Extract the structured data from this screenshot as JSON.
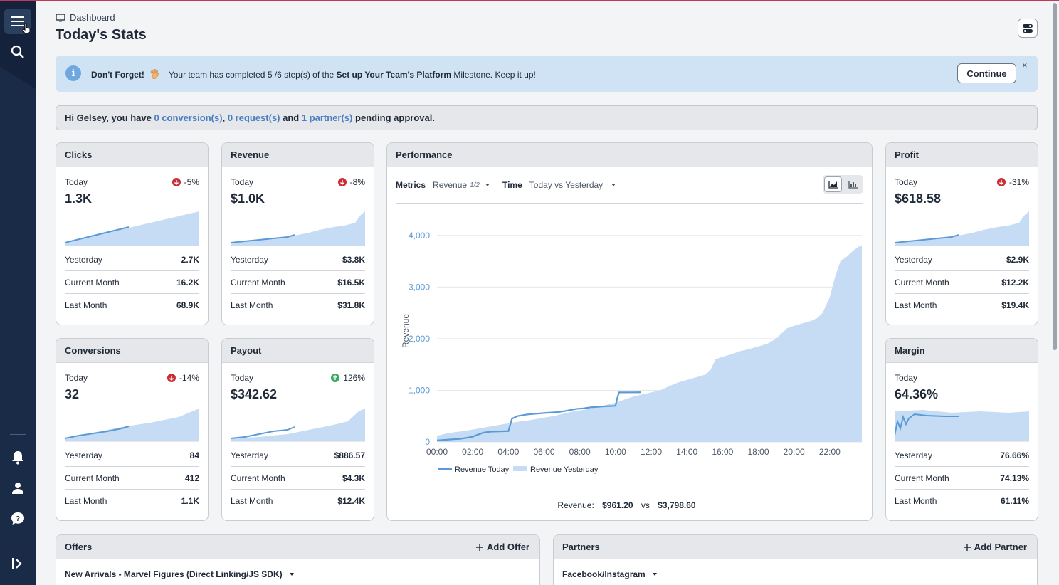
{
  "breadcrumb": "Dashboard",
  "page_title": "Today's Stats",
  "banner": {
    "heading": "Don't Forget!",
    "text_before": "Your team has completed 5 /6 step(s) of the ",
    "milestone": "Set up Your Team's Platform",
    "text_after": " Milestone. Keep it up!",
    "continue_label": "Continue",
    "close_label": "×"
  },
  "pending": {
    "prefix": "Hi Gelsey, you have ",
    "conversions": "0 conversion(s)",
    "sep1": ", ",
    "requests": "0 request(s)",
    "sep2": " and ",
    "partners": "1 partner(s)",
    "suffix": " pending approval."
  },
  "labels": {
    "today": "Today",
    "yesterday": "Yesterday",
    "current_month": "Current Month",
    "last_month": "Last Month"
  },
  "cards": {
    "clicks": {
      "title": "Clicks",
      "delta": "-5%",
      "direction": "down",
      "today": "1.3K",
      "yesterday": "2.7K",
      "current_month": "16.2K",
      "last_month": "68.9K"
    },
    "revenue": {
      "title": "Revenue",
      "delta": "-8%",
      "direction": "down",
      "today": "$1.0K",
      "yesterday": "$3.8K",
      "current_month": "$16.5K",
      "last_month": "$31.8K"
    },
    "profit": {
      "title": "Profit",
      "delta": "-31%",
      "direction": "down",
      "today": "$618.58",
      "yesterday": "$2.9K",
      "current_month": "$12.2K",
      "last_month": "$19.4K"
    },
    "conversions": {
      "title": "Conversions",
      "delta": "-14%",
      "direction": "down",
      "today": "32",
      "yesterday": "84",
      "current_month": "412",
      "last_month": "1.1K"
    },
    "payout": {
      "title": "Payout",
      "delta": "126%",
      "direction": "up",
      "today": "$342.62",
      "yesterday": "$886.57",
      "current_month": "$4.3K",
      "last_month": "$12.4K"
    },
    "margin": {
      "title": "Margin",
      "delta": "",
      "direction": "none",
      "today": "64.36%",
      "yesterday": "76.66%",
      "current_month": "74.13%",
      "last_month": "61.11%"
    }
  },
  "performance": {
    "title": "Performance",
    "metrics_label": "Metrics",
    "metric_value": "Revenue",
    "metric_count": "1/2",
    "time_label": "Time",
    "time_value": "Today vs Yesterday",
    "summary_label": "Revenue:",
    "summary_today": "$961.20",
    "summary_vs": "vs",
    "summary_yesterday": "$3,798.60"
  },
  "chart_data": {
    "type": "area",
    "ylabel": "Revenue",
    "xlabel": "",
    "x_ticks": [
      "00:00",
      "02:00",
      "04:00",
      "06:00",
      "08:00",
      "10:00",
      "12:00",
      "14:00",
      "16:00",
      "18:00",
      "20:00",
      "22:00"
    ],
    "y_ticks": [
      0,
      1000,
      2000,
      3000,
      4000
    ],
    "y_tick_labels": [
      "0",
      "1,000",
      "2,000",
      "3,000",
      "4,000"
    ],
    "ylim": [
      0,
      4300
    ],
    "xlim_hours": [
      0,
      23.8
    ],
    "series": [
      {
        "name": "Revenue Yesterday",
        "style": "area",
        "color": "#c5dcf4",
        "x_hours": [
          0,
          0.5,
          1,
          1.5,
          2,
          2.5,
          3,
          3.5,
          4,
          4.5,
          5,
          5.5,
          6,
          6.5,
          7,
          7.5,
          8,
          8.5,
          9,
          9.5,
          10,
          10.5,
          11,
          11.5,
          12,
          12.5,
          13,
          13.5,
          14,
          14.5,
          15,
          15.3,
          15.6,
          16,
          16.5,
          17,
          17.5,
          18,
          18.5,
          19,
          19.3,
          19.6,
          20,
          20.5,
          21,
          21.3,
          21.6,
          22,
          22.3,
          22.6,
          23,
          23.3,
          23.6,
          23.8
        ],
        "values": [
          120,
          160,
          190,
          210,
          240,
          270,
          300,
          330,
          360,
          390,
          410,
          440,
          470,
          500,
          540,
          580,
          610,
          640,
          680,
          720,
          760,
          820,
          880,
          920,
          960,
          1000,
          1080,
          1150,
          1200,
          1250,
          1300,
          1380,
          1600,
          1650,
          1700,
          1760,
          1800,
          1850,
          1900,
          2000,
          2100,
          2200,
          2250,
          2300,
          2350,
          2400,
          2500,
          2800,
          3200,
          3500,
          3600,
          3700,
          3780,
          3798
        ]
      },
      {
        "name": "Revenue Today",
        "style": "line",
        "color": "#5b9ad6",
        "x_hours": [
          0,
          0.8,
          1.3,
          2,
          2.2,
          2.6,
          3,
          4,
          4.2,
          4.5,
          5,
          5.3,
          6,
          6.8,
          7.2,
          7.8,
          8.2,
          8.6,
          9,
          9.4,
          10,
          10.1,
          10.2,
          11.3,
          11.4
        ],
        "values": [
          30,
          50,
          60,
          100,
          130,
          180,
          200,
          210,
          450,
          500,
          530,
          540,
          560,
          580,
          600,
          640,
          650,
          670,
          680,
          690,
          700,
          850,
          960,
          961,
          961
        ]
      }
    ]
  },
  "offers": {
    "title": "Offers",
    "add_label": "Add Offer",
    "selected": "New Arrivals - Marvel Figures (Direct Linking/JS SDK)"
  },
  "partners": {
    "title": "Partners",
    "add_label": "Add Partner",
    "selected": "Facebook/Instagram"
  },
  "icons": {
    "menu": "menu-icon",
    "search": "search-icon",
    "bell": "bell-icon",
    "user": "user-icon",
    "help": "help-icon",
    "expand": "expand-sidebar-icon"
  },
  "colors": {
    "sidebar": "#1a2b47",
    "banner": "#cfe3f5",
    "accent": "#4a7fc1",
    "down": "#c92f35",
    "up": "#3daa62",
    "area": "#c5dcf4",
    "line": "#5b9ad6"
  }
}
